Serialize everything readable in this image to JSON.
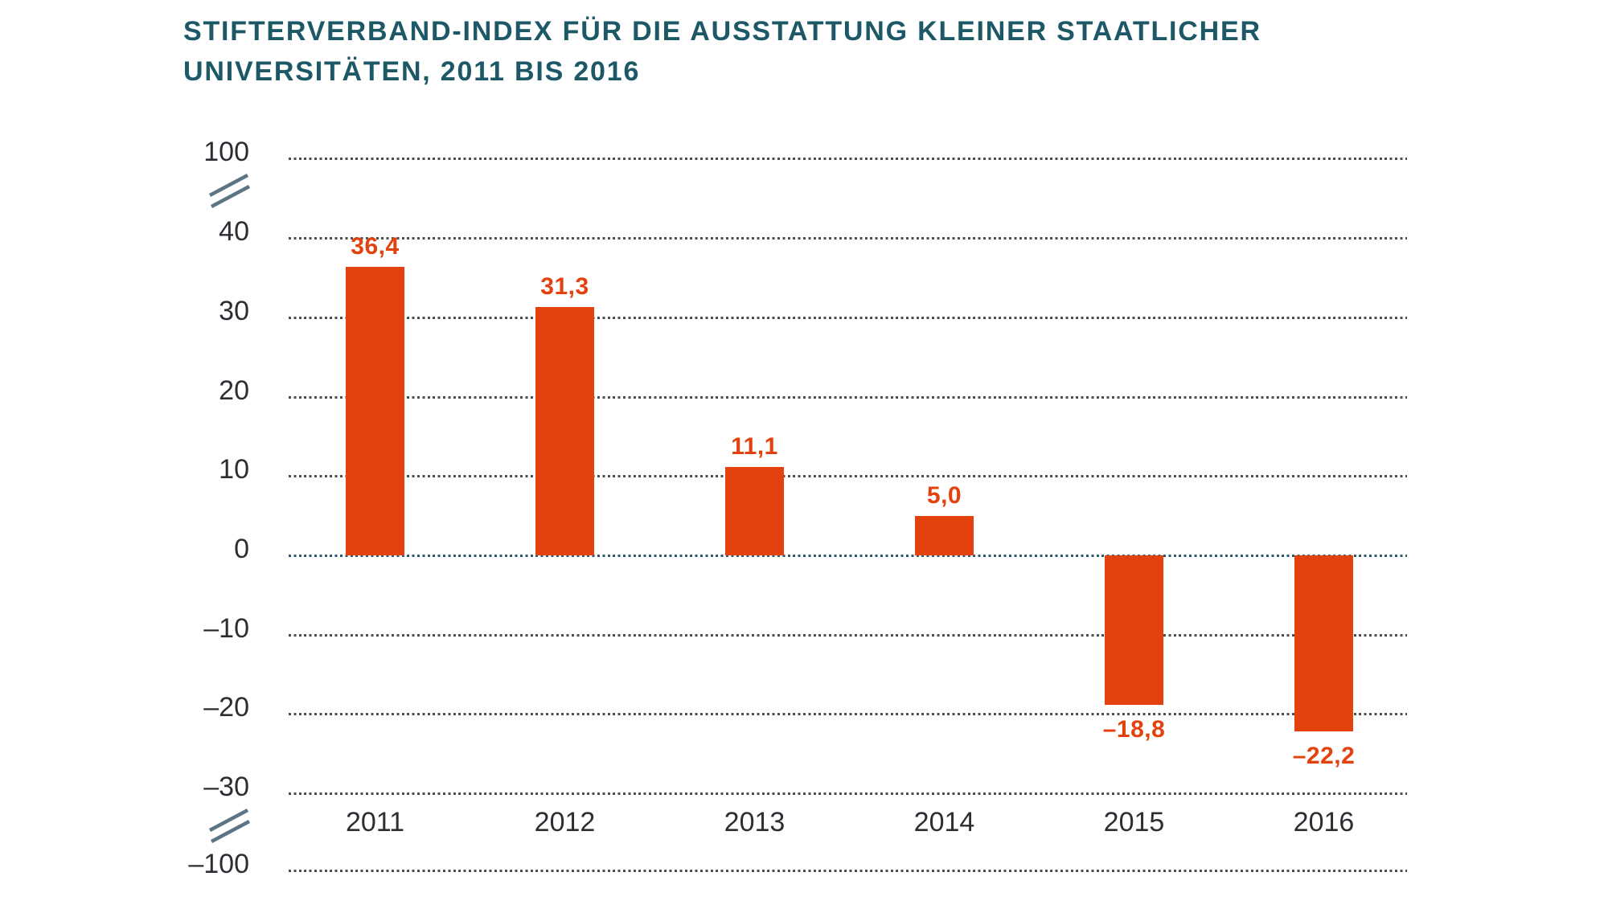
{
  "title": {
    "line1": "STIFTERVERBAND-INDEX FÜR DIE AUSSTATTUNG KLEINER STAATLICHER",
    "line2": "UNIVERSITÄTEN, 2011 BIS 2016"
  },
  "chart_data": {
    "type": "bar",
    "title": "Stifterverband-Index für die Ausstattung kleiner staatlicher Universitäten, 2011 bis 2016",
    "categories": [
      "2011",
      "2012",
      "2013",
      "2014",
      "2015",
      "2016"
    ],
    "values": [
      36.4,
      31.3,
      11.1,
      5.0,
      -18.8,
      -22.2
    ],
    "value_labels": [
      "36,4",
      "31,3",
      "11,1",
      "5,0",
      "–18,8",
      "–22,2"
    ],
    "xlabel": "",
    "ylabel": "",
    "yticks": [
      100,
      40,
      30,
      20,
      10,
      0,
      -10,
      -20,
      -30,
      -100
    ],
    "ytick_labels": [
      "100",
      "40",
      "30",
      "20",
      "10",
      "0",
      "–10",
      "–20",
      "–30",
      "–100"
    ],
    "axis_breaks": "y-axis broken between 40 and 100 and between -30 and -100",
    "grid": "horizontal dotted gridlines, zero line emphasized",
    "legend": "none",
    "colors": {
      "bar": "#e3420e",
      "value_label": "#e3420e",
      "title": "#1d5867",
      "axis_label": "#2b2e33",
      "gridline": "#4a4e52",
      "zero_line": "#2e5a6e",
      "axis_break": "#5b7585",
      "background": "#ffffff"
    }
  }
}
